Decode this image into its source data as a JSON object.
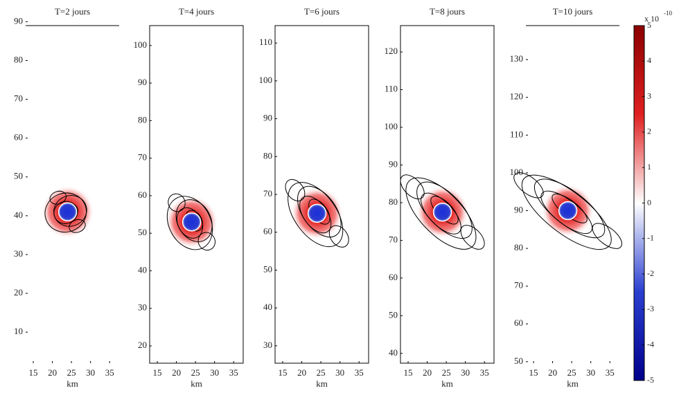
{
  "chart_data": [
    {
      "type": "contour",
      "title": "T=2 jours",
      "xlabel": "km",
      "xlim": [
        13,
        37.5
      ],
      "xticks": [
        15,
        20,
        25,
        30,
        35
      ],
      "ylim": [
        2,
        89
      ],
      "yticks": [
        10,
        20,
        30,
        40,
        50,
        60,
        70,
        80,
        90
      ],
      "box": false,
      "center": [
        24,
        41
      ]
    },
    {
      "type": "contour",
      "title": "T=4 jours",
      "xlabel": "km",
      "xlim": [
        13,
        37.5
      ],
      "xticks": [
        15,
        20,
        25,
        30,
        35
      ],
      "ylim": [
        15.4,
        105.3
      ],
      "yticks": [
        20,
        30,
        40,
        50,
        60,
        70,
        80,
        90,
        100
      ],
      "box": true,
      "center": [
        24,
        53
      ]
    },
    {
      "type": "contour",
      "title": "T=6 jours",
      "xlabel": "km",
      "xlim": [
        13,
        37.5
      ],
      "xticks": [
        15,
        20,
        25,
        30,
        35
      ],
      "ylim": [
        25.4,
        114.6
      ],
      "yticks": [
        30,
        40,
        50,
        60,
        70,
        80,
        90,
        100,
        110
      ],
      "box": true,
      "center": [
        24,
        65
      ]
    },
    {
      "type": "contour",
      "title": "T=8 jours",
      "xlabel": "km",
      "xlim": [
        13,
        37.5
      ],
      "xticks": [
        15,
        20,
        25,
        30,
        35
      ],
      "ylim": [
        37.4,
        127
      ],
      "yticks": [
        40,
        50,
        60,
        70,
        80,
        90,
        100,
        110,
        120
      ],
      "box": true,
      "center": [
        24,
        77.5
      ]
    },
    {
      "type": "contour",
      "title": "T=10 jours",
      "xlabel": "km",
      "xlim": [
        13,
        37.5
      ],
      "xticks": [
        15,
        20,
        25,
        30,
        35
      ],
      "ylim": [
        49.6,
        139
      ],
      "yticks": [
        50,
        60,
        70,
        80,
        90,
        100,
        110,
        120,
        130
      ],
      "box": false,
      "center": [
        24,
        90
      ]
    }
  ],
  "colorbar": {
    "label": "x 10",
    "exponent": "-10",
    "ylim": [
      -5,
      5
    ],
    "yticks": [
      -5,
      -4,
      -3,
      -2,
      -1,
      0,
      1,
      2,
      3,
      4,
      5
    ],
    "colors": [
      "#00008b",
      "#2a3fd0",
      "#ffffff",
      "#e02020",
      "#8b0000"
    ]
  }
}
